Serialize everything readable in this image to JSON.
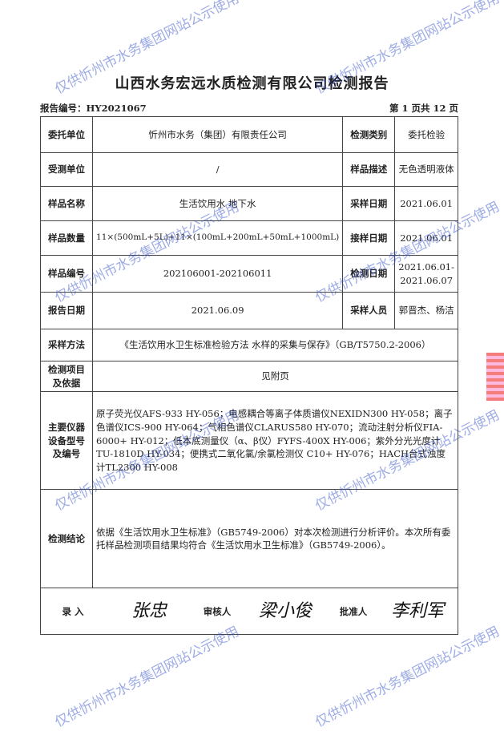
{
  "title": "山西水务宏远水质检测有限公司检测报告",
  "report_no": "报告编号：HY2021067",
  "page_info": "第 1 页共 12 页",
  "rows": {
    "client_label": "委托单位",
    "client": "忻州市水务（集团）有限责任公司",
    "test_type_label": "检测类别",
    "test_type": "委托检验",
    "tested_label": "受测单位",
    "tested": "/",
    "desc_label": "样品描述",
    "desc": "无色透明液体",
    "sample_name_label": "样品名称",
    "sample_name": "生活饮用水 地下水",
    "sampling_date_label": "采样日期",
    "sampling_date": "2021.06.01",
    "qty_label": "样品数量",
    "qty": "11×(500mL+5L)+11×(100mL+200mL+50mL+1000mL)",
    "recv_date_label": "接样日期",
    "recv_date": "2021.06.01",
    "sample_no_label": "样品编号",
    "sample_no": "202106001-202106011",
    "test_date_label": "检测日期",
    "test_date": "2021.06.01-2021.06.07",
    "report_date_label": "报告日期",
    "report_date": "2021.06.09",
    "sampler_label": "采样人员",
    "sampler": "郭晋杰、杨洁",
    "method_label": "采样方法",
    "method": "《生活饮用水卫生标准检验方法 水样的采集与保存》（GB/T5750.2-2006）",
    "items_label": "检测项目及依据",
    "items": "见附页",
    "instruments_label": "主要仪器设备型号及编号",
    "instruments": "原子荧光仪AFS-933  HY-056；电感耦合等离子体质谱仪NEXIDN300  HY-058；离子色谱仪ICS-900  HY-064；气相色谱仪CLARUS580  HY-070；流动注射分析仪FIA-6000+ HY-012；低本底测量仪（α、β仪）FYFS-400X  HY-006；紫外分光光度计TU-1810D  HY-034；便携式二氧化氯/余氯检测仪 C10+ HY-076；HACH台式浊度计TL2300  HY-008",
    "conclusion_label": "检测结论",
    "conclusion": "依据《生活饮用水卫生标准》（GB5749-2006）对本次检测进行分析评价。本次所有委托样品检测项目结果均符合《生活饮用水卫生标准》（GB5749-2006）。",
    "entry_label": "录  入",
    "entry_sig": "张忠",
    "reviewer_label": "审核人",
    "reviewer_sig": "梁小俊",
    "approver_label": "批准人",
    "approver_sig": "李利军"
  },
  "watermark": "仅供忻州市水务集团网站公示使用"
}
